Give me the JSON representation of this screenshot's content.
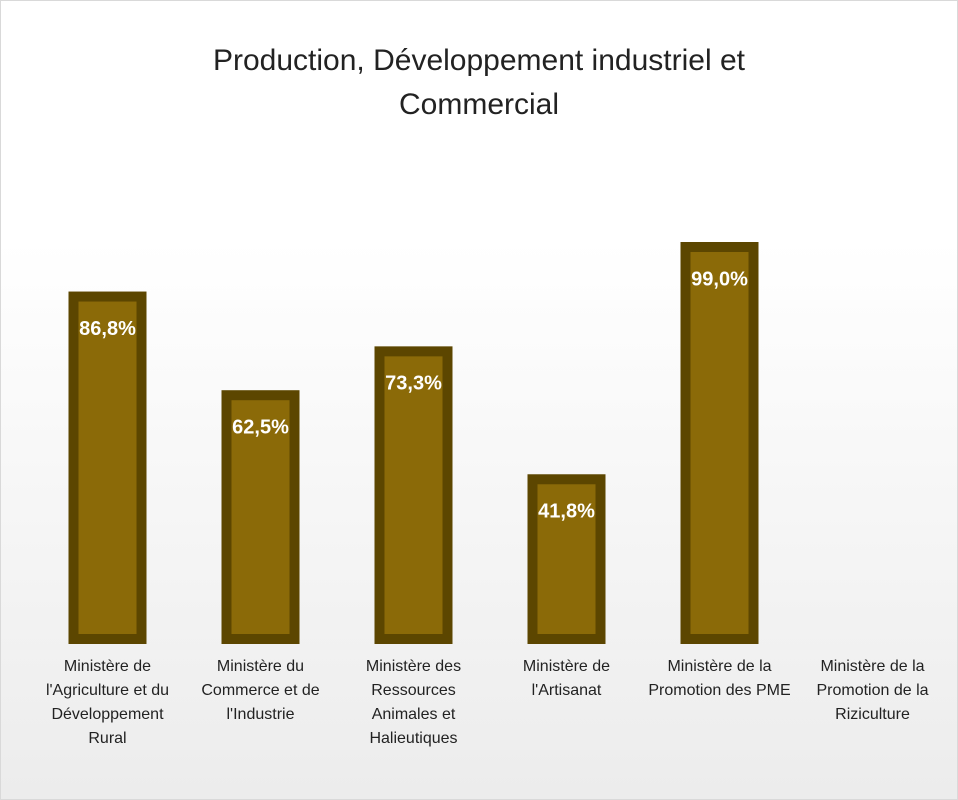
{
  "chart_data": {
    "type": "bar",
    "title": "Production, Développement industriel et Commercial",
    "categories": [
      "Ministère de l'Agriculture et du Développement Rural",
      "Ministère du Commerce et de l'Industrie",
      "Ministère des Ressources Animales et Halieutiques",
      "Ministère de l'Artisanat",
      "Ministère de la Promotion des PME",
      "Ministère de la Promotion de la Riziculture"
    ],
    "values": [
      86.8,
      62.5,
      73.3,
      41.8,
      99.0,
      null
    ],
    "value_labels": [
      "86,8%",
      "62,5%",
      "73,3%",
      "41,8%",
      "99,0%",
      null
    ],
    "color": "#8b6a08"
  }
}
